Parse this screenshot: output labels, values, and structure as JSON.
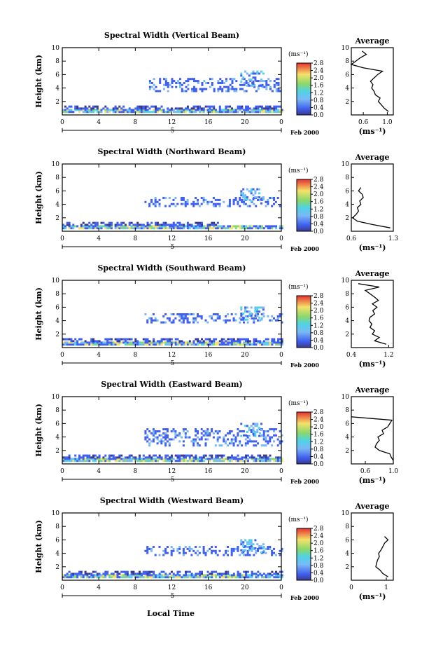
{
  "figure": {
    "xlabel": "Local Time",
    "date_label": "Feb 2000",
    "day_label": "5",
    "colorbar_unit": "(ms⁻¹)",
    "colorbar_ticks": [
      "0.0",
      "0.4",
      "0.8",
      "1.2",
      "1.6",
      "2.0",
      "2.4",
      "2.8"
    ],
    "profile_title": "Average",
    "profile_xunit": "(ms⁻¹)",
    "ylabel": "Height (km)",
    "colors": {
      "low": "#3a3a8c",
      "mid_blue": "#3f5ff0",
      "light_blue": "#7ab8f5",
      "cyan": "#4fd3e6",
      "green": "#8bd86a",
      "yellow": "#f4e26a",
      "red": "#e83030"
    }
  },
  "chart_data": [
    {
      "type": "heatmap",
      "title": "Spectral Width (Vertical Beam)",
      "xlim": [
        0,
        24
      ],
      "x_ticks": [
        "0",
        "4",
        "8",
        "12",
        "16",
        "20",
        "0"
      ],
      "ylim": [
        0,
        10
      ],
      "y_ticks": [
        "2",
        "4",
        "6",
        "8",
        "10"
      ],
      "bands": [
        {
          "x": [
            0,
            24
          ],
          "y": [
            0.3,
            0.8
          ],
          "level": "mixed"
        },
        {
          "x": [
            0,
            24
          ],
          "y": [
            0.8,
            1.4
          ],
          "level": "dark"
        },
        {
          "x": [
            9.5,
            24
          ],
          "y": [
            3.4,
            5.2
          ],
          "level": "blue"
        },
        {
          "x": [
            19.5,
            22
          ],
          "y": [
            4.2,
            6.5
          ],
          "level": "light"
        }
      ],
      "profile": {
        "xlim": [
          0.4,
          1.1
        ],
        "x_ticks": [
          "0.6",
          "1.0"
        ],
        "height": [
          0.5,
          1,
          1.5,
          2,
          2.5,
          3,
          3.5,
          4,
          4.5,
          5,
          5.5,
          6,
          6.5,
          7,
          7.5,
          8.5,
          9,
          9.5
        ],
        "value": [
          1.02,
          0.95,
          0.9,
          0.85,
          0.88,
          0.8,
          0.78,
          0.74,
          0.76,
          0.72,
          0.78,
          0.84,
          0.92,
          0.6,
          0.4,
          0.55,
          0.65,
          0.58
        ]
      }
    },
    {
      "type": "heatmap",
      "title": "Spectral Width (Northward Beam)",
      "xlim": [
        0,
        24
      ],
      "x_ticks": [
        "0",
        "4",
        "8",
        "12",
        "16",
        "20",
        "0"
      ],
      "ylim": [
        0,
        10
      ],
      "y_ticks": [
        "2",
        "4",
        "6",
        "8",
        "10"
      ],
      "bands": [
        {
          "x": [
            0,
            24
          ],
          "y": [
            0.3,
            0.8
          ],
          "level": "mixed"
        },
        {
          "x": [
            0,
            17
          ],
          "y": [
            0.8,
            1.3
          ],
          "level": "dark"
        },
        {
          "x": [
            9,
            24
          ],
          "y": [
            3.6,
            5.0
          ],
          "level": "blue"
        },
        {
          "x": [
            19.5,
            22
          ],
          "y": [
            4.0,
            6.2
          ],
          "level": "light"
        }
      ],
      "profile": {
        "xlim": [
          0.6,
          1.3
        ],
        "x_ticks": [
          "0.6",
          "1.3"
        ],
        "height": [
          0.5,
          1,
          1.5,
          2,
          2.5,
          3,
          3.5,
          4,
          4.5,
          5,
          5.5,
          6,
          6.5
        ],
        "value": [
          1.25,
          0.95,
          0.7,
          0.62,
          0.68,
          0.72,
          0.7,
          0.76,
          0.74,
          0.8,
          0.78,
          0.72,
          0.76
        ]
      }
    },
    {
      "type": "heatmap",
      "title": "Spectral Width (Southward Beam)",
      "xlim": [
        0,
        24
      ],
      "x_ticks": [
        "0",
        "4",
        "8",
        "12",
        "16",
        "20",
        "0"
      ],
      "ylim": [
        0,
        10
      ],
      "y_ticks": [
        "2",
        "4",
        "6",
        "8",
        "10"
      ],
      "bands": [
        {
          "x": [
            0,
            24
          ],
          "y": [
            0.3,
            0.8
          ],
          "level": "mixed"
        },
        {
          "x": [
            0,
            24
          ],
          "y": [
            0.8,
            1.3
          ],
          "level": "dark"
        },
        {
          "x": [
            9,
            24
          ],
          "y": [
            3.6,
            5.0
          ],
          "level": "blue"
        },
        {
          "x": [
            19.5,
            22
          ],
          "y": [
            4.0,
            6.0
          ],
          "level": "light"
        }
      ],
      "profile": {
        "xlim": [
          0.4,
          1.3
        ],
        "x_ticks": [
          "0.4",
          "1.2"
        ],
        "height": [
          0.5,
          1,
          1.5,
          2,
          2.5,
          3,
          3.5,
          4,
          4.5,
          5,
          5.5,
          6,
          6.5,
          7,
          7.5,
          8.5,
          9,
          9.5
        ],
        "value": [
          1.15,
          0.9,
          1.0,
          0.85,
          0.9,
          0.8,
          0.84,
          0.78,
          0.8,
          0.9,
          0.86,
          0.95,
          0.85,
          0.98,
          0.9,
          0.7,
          1.0,
          0.55
        ]
      }
    },
    {
      "type": "heatmap",
      "title": "Spectral Width (Eastward Beam)",
      "xlim": [
        0,
        24
      ],
      "x_ticks": [
        "0",
        "4",
        "8",
        "12",
        "16",
        "20",
        "0"
      ],
      "ylim": [
        0,
        10
      ],
      "y_ticks": [
        "2",
        "4",
        "6",
        "8",
        "10"
      ],
      "bands": [
        {
          "x": [
            0,
            24
          ],
          "y": [
            0.3,
            0.8
          ],
          "level": "mixed"
        },
        {
          "x": [
            0,
            24
          ],
          "y": [
            0.8,
            1.4
          ],
          "level": "dark"
        },
        {
          "x": [
            9,
            24
          ],
          "y": [
            2.6,
            5.0
          ],
          "level": "blue"
        },
        {
          "x": [
            19.5,
            22
          ],
          "y": [
            4.0,
            6.0
          ],
          "level": "light"
        }
      ],
      "profile": {
        "xlim": [
          0.4,
          1.0
        ],
        "x_ticks": [
          "0.6",
          "1.0"
        ],
        "height": [
          0.5,
          1,
          1.5,
          2,
          2.5,
          3,
          3.5,
          4,
          4.5,
          5,
          5.5,
          6,
          6.5,
          7
        ],
        "value": [
          1.0,
          0.97,
          0.95,
          0.8,
          0.74,
          0.76,
          0.8,
          0.78,
          0.86,
          0.84,
          0.92,
          0.95,
          0.98,
          0.4
        ]
      }
    },
    {
      "type": "heatmap",
      "title": "Spectral Width (Westward Beam)",
      "xlim": [
        0,
        24
      ],
      "x_ticks": [
        "0",
        "4",
        "8",
        "12",
        "16",
        "20",
        "0"
      ],
      "ylim": [
        0,
        10
      ],
      "y_ticks": [
        "2",
        "4",
        "6",
        "8",
        "10"
      ],
      "bands": [
        {
          "x": [
            0,
            24
          ],
          "y": [
            0.3,
            0.8
          ],
          "level": "mixed"
        },
        {
          "x": [
            0,
            24
          ],
          "y": [
            0.8,
            1.4
          ],
          "level": "dark"
        },
        {
          "x": [
            9,
            24
          ],
          "y": [
            3.6,
            5.0
          ],
          "level": "blue"
        },
        {
          "x": [
            19.5,
            22
          ],
          "y": [
            4.0,
            6.0
          ],
          "level": "light"
        }
      ],
      "profile": {
        "xlim": [
          0,
          1.2
        ],
        "x_ticks": [
          "0",
          "1"
        ],
        "height": [
          0.5,
          1,
          1.5,
          2,
          2.5,
          3,
          3.5,
          4,
          4.5,
          5,
          5.5,
          6,
          6.5
        ],
        "value": [
          1.05,
          0.9,
          0.82,
          0.7,
          0.72,
          0.75,
          0.8,
          0.78,
          0.85,
          0.9,
          0.95,
          1.05,
          0.95
        ]
      }
    }
  ]
}
